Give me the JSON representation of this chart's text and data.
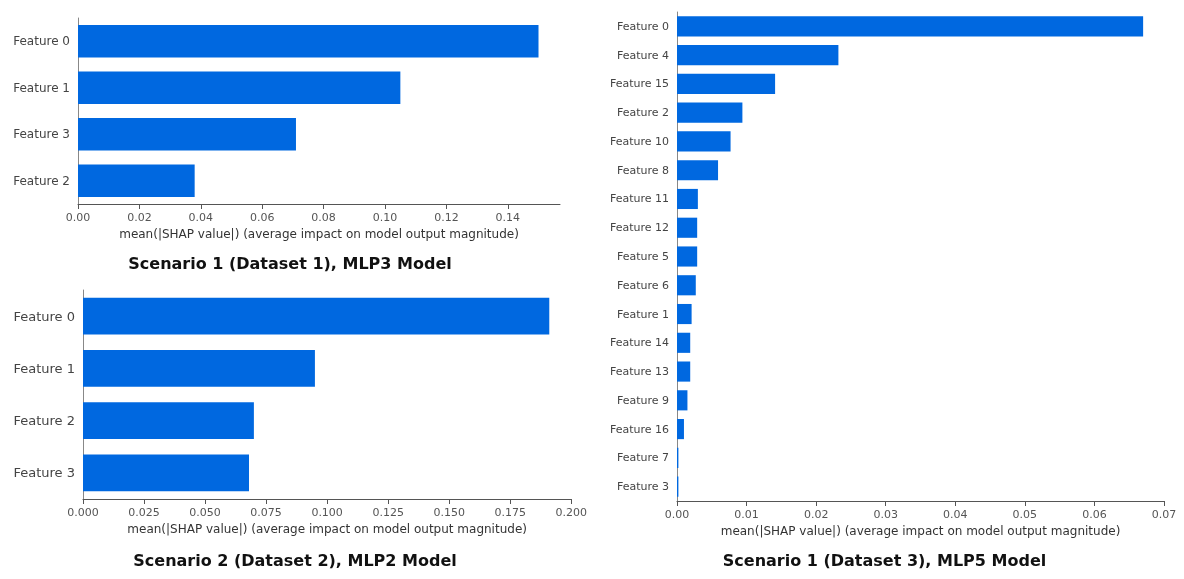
{
  "chart_data": [
    {
      "type": "bar",
      "orientation": "horizontal",
      "title": "Scenario 1 (Dataset 1), MLP3 Model",
      "xlabel": "mean(|SHAP value|) (average impact on model output magnitude)",
      "categories": [
        "Feature 0",
        "Feature 1",
        "Feature 3",
        "Feature 2"
      ],
      "values": [
        0.15,
        0.105,
        0.071,
        0.038
      ],
      "color": "#0068e0",
      "xlim": [
        0,
        0.157
      ],
      "xticks": [
        {
          "value": 0,
          "label": "0.00"
        },
        {
          "value": 0.02,
          "label": "0.02"
        },
        {
          "value": 0.04,
          "label": "0.04"
        },
        {
          "value": 0.06,
          "label": "0.06"
        },
        {
          "value": 0.08,
          "label": "0.08"
        },
        {
          "value": 0.1,
          "label": "0.10"
        },
        {
          "value": 0.12,
          "label": "0.12"
        },
        {
          "value": 0.14,
          "label": "0.14"
        }
      ]
    },
    {
      "type": "bar",
      "orientation": "horizontal",
      "title": "Scenario 2 (Dataset 2), MLP2 Model",
      "xlabel": "mean(|SHAP value|) (average impact on model output magnitude)",
      "categories": [
        "Feature 0",
        "Feature 1",
        "Feature 2",
        "Feature 3"
      ],
      "values": [
        0.191,
        0.095,
        0.07,
        0.068
      ],
      "color": "#0068e0",
      "xlim": [
        0,
        0.2
      ],
      "xticks": [
        {
          "value": 0,
          "label": "0.000"
        },
        {
          "value": 0.025,
          "label": "0.025"
        },
        {
          "value": 0.05,
          "label": "0.050"
        },
        {
          "value": 0.075,
          "label": "0.075"
        },
        {
          "value": 0.1,
          "label": "0.100"
        },
        {
          "value": 0.125,
          "label": "0.125"
        },
        {
          "value": 0.15,
          "label": "0.150"
        },
        {
          "value": 0.175,
          "label": "0.175"
        },
        {
          "value": 0.2,
          "label": "0.200"
        }
      ]
    },
    {
      "type": "bar",
      "orientation": "horizontal",
      "title": "Scenario 1 (Dataset 3), MLP5 Model",
      "xlabel": "mean(|SHAP value|) (average impact on model output magnitude)",
      "categories": [
        "Feature 0",
        "Feature 4",
        "Feature 15",
        "Feature 2",
        "Feature 10",
        "Feature 8",
        "Feature 11",
        "Feature 12",
        "Feature 5",
        "Feature 6",
        "Feature 1",
        "Feature 14",
        "Feature 13",
        "Feature 9",
        "Feature 16",
        "Feature 7",
        "Feature 3"
      ],
      "values": [
        0.067,
        0.0232,
        0.0141,
        0.0094,
        0.0077,
        0.0059,
        0.003,
        0.0029,
        0.0029,
        0.0027,
        0.0021,
        0.0019,
        0.0019,
        0.0015,
        0.001,
        0.0002,
        0.0002
      ],
      "color": "#0068e0",
      "xlim": [
        0,
        0.07
      ],
      "xticks": [
        {
          "value": 0,
          "label": "0.00"
        },
        {
          "value": 0.01,
          "label": "0.01"
        },
        {
          "value": 0.02,
          "label": "0.02"
        },
        {
          "value": 0.03,
          "label": "0.03"
        },
        {
          "value": 0.04,
          "label": "0.04"
        },
        {
          "value": 0.05,
          "label": "0.05"
        },
        {
          "value": 0.06,
          "label": "0.06"
        },
        {
          "value": 0.07,
          "label": "0.07"
        }
      ]
    }
  ]
}
